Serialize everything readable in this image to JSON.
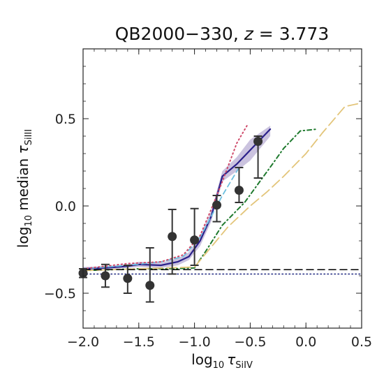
{
  "chart_data": {
    "type": "line",
    "title": "QB2000−330, z = 3.773",
    "title_parts": {
      "name": "QB2000−330, ",
      "var": "z",
      "rest": " = 3.773"
    },
    "xlabel": "log10 τSiIV",
    "xlabel_parts": {
      "log": "log",
      "sub": "10",
      "tau": "τ",
      "ion": "SiIV"
    },
    "ylabel": "log10 median τSiIII",
    "ylabel_parts": {
      "log": "log",
      "sub": "10",
      "median": " median ",
      "tau": "τ",
      "ion": "SiIII"
    },
    "xlim": [
      -2.0,
      0.5
    ],
    "ylim": [
      -0.7,
      0.9
    ],
    "x_ticks": [
      -2.0,
      -1.5,
      -1.0,
      -0.5,
      0.0,
      0.5
    ],
    "x_tick_labels": [
      "−2.0",
      "−1.5",
      "−1.0",
      "−0.5",
      "0.0",
      "0.5"
    ],
    "y_ticks": [
      -0.5,
      0.0,
      0.5
    ],
    "y_tick_labels": [
      "−0.5",
      "0.0",
      "0.5"
    ],
    "grid": false,
    "observed": {
      "points": [
        {
          "x": -2.0,
          "y": -0.385,
          "lo": -0.41,
          "hi": -0.36
        },
        {
          "x": -1.8,
          "y": -0.4,
          "lo": -0.465,
          "hi": -0.335
        },
        {
          "x": -1.6,
          "y": -0.415,
          "lo": -0.5,
          "hi": -0.34
        },
        {
          "x": -1.4,
          "y": -0.455,
          "lo": -0.55,
          "hi": -0.24
        },
        {
          "x": -1.2,
          "y": -0.175,
          "lo": -0.39,
          "hi": -0.02
        },
        {
          "x": -1.0,
          "y": -0.195,
          "lo": -0.34,
          "hi": -0.015
        },
        {
          "x": -0.8,
          "y": 0.005,
          "lo": -0.09,
          "hi": 0.06
        },
        {
          "x": -0.6,
          "y": 0.09,
          "lo": 0.02,
          "hi": 0.22
        },
        {
          "x": -0.43,
          "y": 0.37,
          "lo": 0.16,
          "hi": 0.4
        }
      ],
      "color": "#333333"
    },
    "series": [
      {
        "style": "solid",
        "color": "#2a1f8a",
        "x": [
          -2.0,
          -1.8,
          -1.6,
          -1.5,
          -1.3,
          -1.15,
          -1.05,
          -0.95,
          -0.85,
          -0.75,
          -0.62,
          -0.5,
          -0.32
        ],
        "y": [
          -0.36,
          -0.355,
          -0.345,
          -0.335,
          -0.34,
          -0.32,
          -0.29,
          -0.2,
          -0.06,
          0.17,
          0.24,
          0.32,
          0.44
        ],
        "band_lo": [
          -0.37,
          -0.365,
          -0.355,
          -0.35,
          -0.355,
          -0.34,
          -0.31,
          -0.23,
          -0.09,
          0.14,
          0.2,
          0.26,
          0.4
        ],
        "band_hi": [
          -0.35,
          -0.345,
          -0.335,
          -0.32,
          -0.325,
          -0.3,
          -0.265,
          -0.17,
          -0.03,
          0.2,
          0.28,
          0.38,
          0.46
        ],
        "band_color": "#8c7ab8"
      },
      {
        "style": "dashdot",
        "color": "#1f7a2e",
        "x": [
          -2.0,
          -1.5,
          -1.2,
          -1.0,
          -0.9,
          -0.75,
          -0.55,
          -0.3,
          -0.2,
          -0.05,
          0.1
        ],
        "y": [
          -0.37,
          -0.36,
          -0.36,
          -0.355,
          -0.26,
          -0.11,
          0.02,
          0.24,
          0.33,
          0.43,
          0.44
        ]
      },
      {
        "style": "longdash",
        "color": "#e3c57a",
        "x": [
          -2.0,
          -1.5,
          -1.0,
          -0.7,
          -0.5,
          -0.35,
          -0.2,
          0.0,
          0.15,
          0.35,
          0.5
        ],
        "y": [
          -0.37,
          -0.36,
          -0.35,
          -0.12,
          0.0,
          0.08,
          0.17,
          0.3,
          0.42,
          0.57,
          0.59
        ]
      },
      {
        "style": "dash",
        "color": "#6ec0df",
        "x": [
          -2.0,
          -1.6,
          -1.3,
          -1.1,
          -0.95,
          -0.85,
          -0.75,
          -0.6
        ],
        "y": [
          -0.36,
          -0.34,
          -0.32,
          -0.29,
          -0.18,
          -0.06,
          0.06,
          0.22
        ]
      },
      {
        "style": "dotted",
        "color": "#cf4a6a",
        "x": [
          -2.0,
          -1.6,
          -1.3,
          -1.1,
          -0.95,
          -0.85,
          -0.75,
          -0.62,
          -0.52
        ],
        "y": [
          -0.36,
          -0.33,
          -0.32,
          -0.28,
          -0.17,
          -0.02,
          0.14,
          0.36,
          0.47
        ]
      },
      {
        "style": "hline-dash",
        "color": "#000000",
        "x": [
          -2.0,
          0.5
        ],
        "y": [
          -0.365,
          -0.365
        ]
      },
      {
        "style": "hline-dot",
        "color": "#1a237e",
        "x": [
          -2.0,
          0.5
        ],
        "y": [
          -0.39,
          -0.39
        ]
      }
    ]
  }
}
